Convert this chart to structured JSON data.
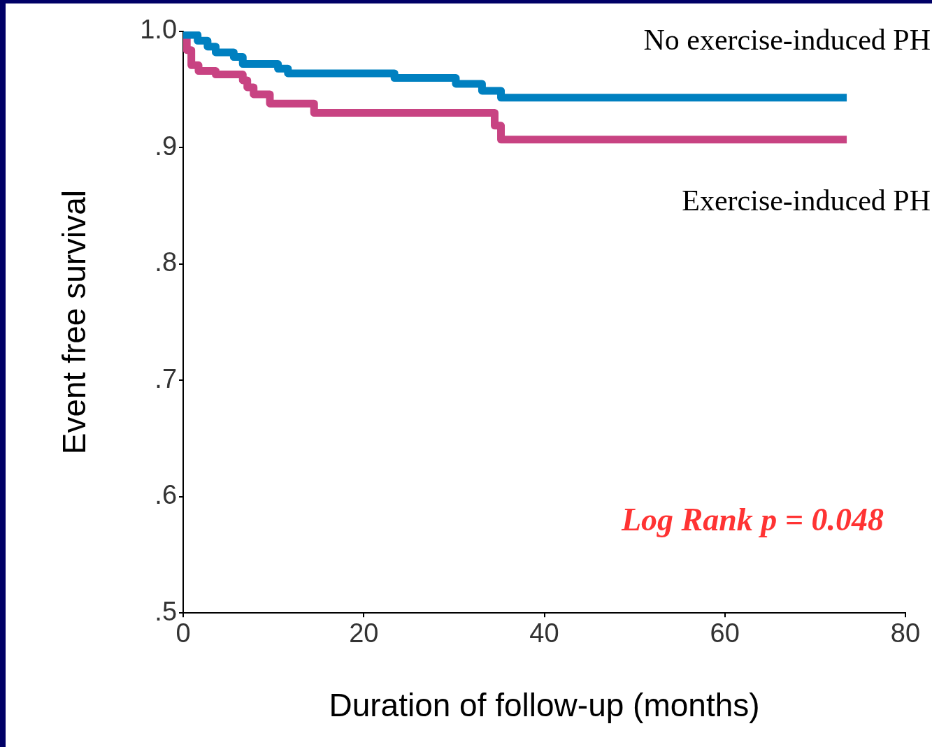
{
  "chart_data": {
    "type": "step",
    "xlabel": "Duration of follow-up (months)",
    "ylabel": "Event free survival",
    "annotations": [
      "Log Rank p = 0.048"
    ],
    "xlim": [
      0,
      80
    ],
    "xticks": [
      0,
      20,
      40,
      60,
      80
    ],
    "ylim": [
      0.5,
      1.0
    ],
    "yticks": [
      {
        "value": 0.5,
        "label": ".5"
      },
      {
        "value": 0.6,
        "label": ".6"
      },
      {
        "value": 0.7,
        "label": ".7"
      },
      {
        "value": 0.8,
        "label": ".8"
      },
      {
        "value": 0.9,
        "label": ".9"
      },
      {
        "value": 1.0,
        "label": "1.0"
      }
    ],
    "grid": false,
    "legend": false,
    "marker": "none",
    "line_style": "solid",
    "series": [
      {
        "name": "No exercise-induced PH",
        "color": "#0080c0",
        "x": [
          0,
          1.6,
          2.7,
          3.6,
          5.6,
          6.6,
          10.5,
          11.6,
          23.4,
          30.2,
          33.1,
          35.2,
          73.5
        ],
        "values": [
          0.997,
          0.992,
          0.987,
          0.982,
          0.978,
          0.972,
          0.968,
          0.964,
          0.96,
          0.955,
          0.949,
          0.943,
          0.943
        ]
      },
      {
        "name": "Exercise-induced PH",
        "color": "#c84382",
        "x": [
          0,
          0.4,
          0.9,
          1.7,
          3.6,
          6.6,
          7.1,
          7.8,
          9.6,
          14.5,
          34.5,
          35.2,
          73.5
        ],
        "values": [
          0.995,
          0.984,
          0.971,
          0.966,
          0.963,
          0.958,
          0.952,
          0.946,
          0.938,
          0.93,
          0.919,
          0.907,
          0.907
        ]
      }
    ]
  }
}
